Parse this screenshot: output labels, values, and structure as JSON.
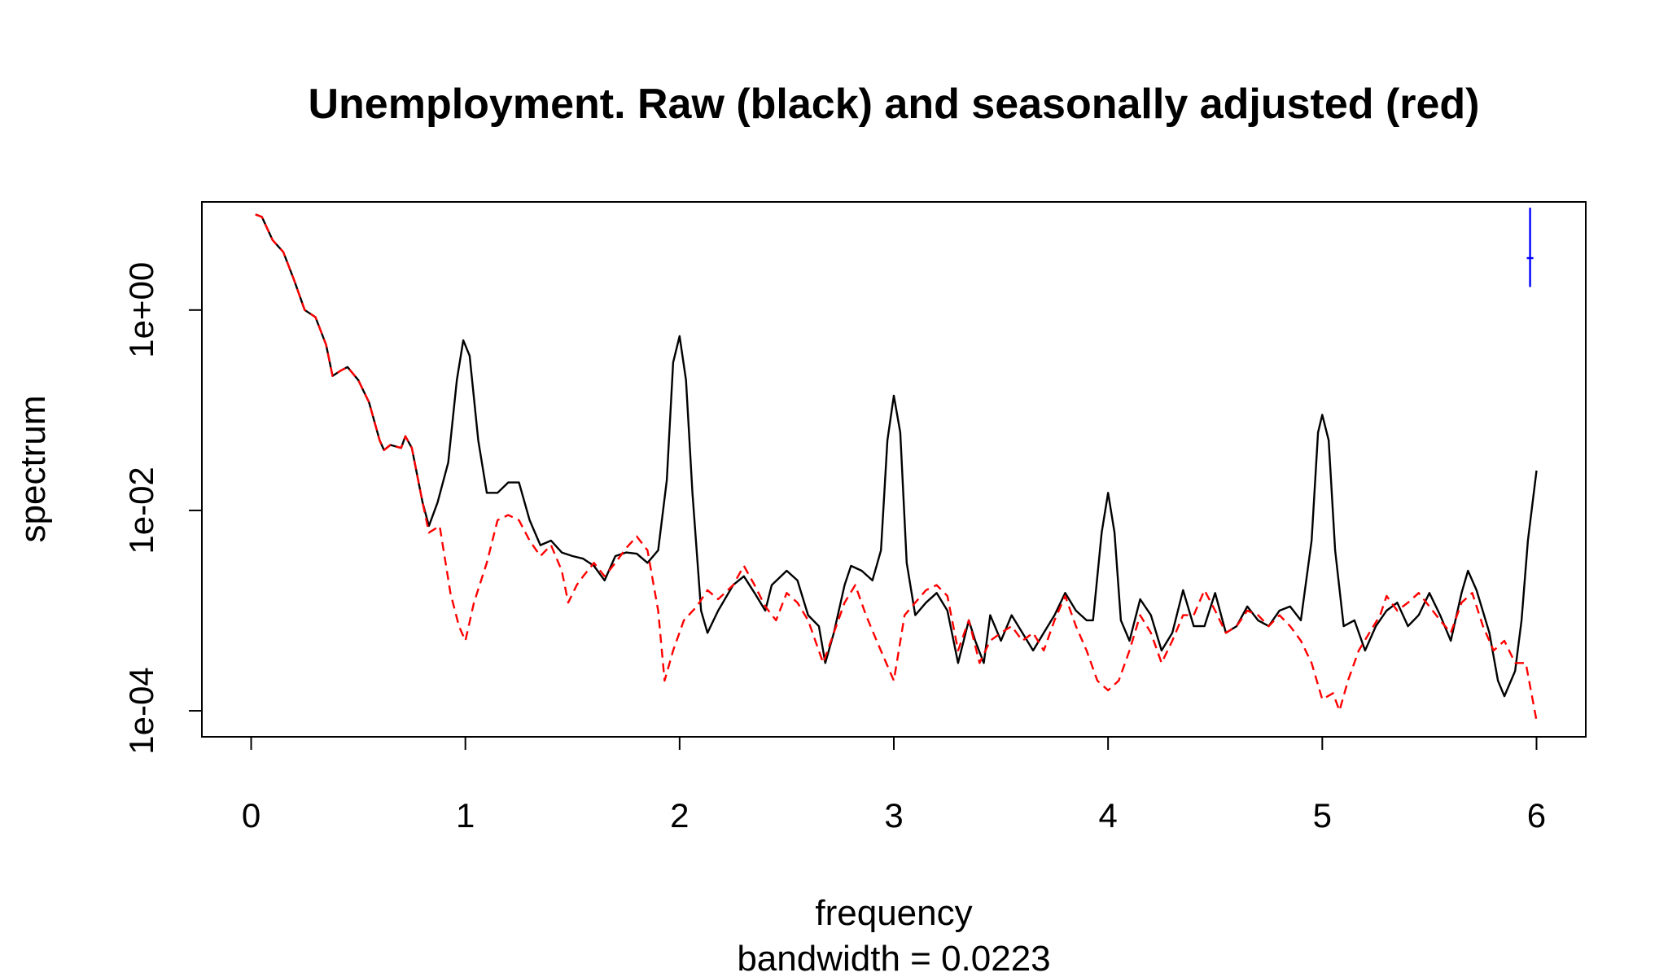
{
  "chart_data": {
    "type": "line",
    "title": "Unemployment. Raw (black) and seasonally adjusted (red)",
    "xlabel": "frequency",
    "ylabel": "spectrum",
    "subtitle": "bandwidth = 0.0223",
    "x_scale": "linear",
    "y_scale": "log",
    "xlim": [
      -0.23,
      6.23
    ],
    "ylim": [
      5.5e-05,
      12
    ],
    "x_ticks": [
      0,
      1,
      2,
      3,
      4,
      5,
      6
    ],
    "x_tick_labels": [
      "0",
      "1",
      "2",
      "3",
      "4",
      "5",
      "6"
    ],
    "y_ticks": [
      0.0001,
      0.01,
      1
    ],
    "y_tick_labels": [
      "1e-04",
      "1e-02",
      "1e+00"
    ],
    "grid": false,
    "legend": "none",
    "colors": {
      "raw": "#000000",
      "adjusted": "#ff0000",
      "ci_bar": "#0000ff"
    },
    "confidence_bar": {
      "x": 5.97,
      "y_low": 1.7,
      "y_center": 3.3,
      "y_high": 10.5
    },
    "series": [
      {
        "style": "solid",
        "color": "#000000",
        "points": [
          [
            0.02,
            9.0
          ],
          [
            0.05,
            8.5
          ],
          [
            0.1,
            5.0
          ],
          [
            0.15,
            3.8
          ],
          [
            0.2,
            2.0
          ],
          [
            0.25,
            1.0
          ],
          [
            0.3,
            0.85
          ],
          [
            0.35,
            0.45
          ],
          [
            0.38,
            0.22
          ],
          [
            0.42,
            0.25
          ],
          [
            0.45,
            0.27
          ],
          [
            0.5,
            0.2
          ],
          [
            0.55,
            0.12
          ],
          [
            0.6,
            0.05
          ],
          [
            0.62,
            0.04
          ],
          [
            0.65,
            0.045
          ],
          [
            0.7,
            0.042
          ],
          [
            0.72,
            0.055
          ],
          [
            0.75,
            0.042
          ],
          [
            0.8,
            0.012
          ],
          [
            0.83,
            0.007
          ],
          [
            0.87,
            0.012
          ],
          [
            0.92,
            0.03
          ],
          [
            0.96,
            0.2
          ],
          [
            0.99,
            0.5
          ],
          [
            1.02,
            0.35
          ],
          [
            1.06,
            0.05
          ],
          [
            1.1,
            0.015
          ],
          [
            1.15,
            0.015
          ],
          [
            1.2,
            0.019
          ],
          [
            1.25,
            0.019
          ],
          [
            1.3,
            0.008
          ],
          [
            1.35,
            0.0045
          ],
          [
            1.4,
            0.005
          ],
          [
            1.45,
            0.0038
          ],
          [
            1.5,
            0.0035
          ],
          [
            1.55,
            0.0033
          ],
          [
            1.6,
            0.0028
          ],
          [
            1.65,
            0.002
          ],
          [
            1.7,
            0.0035
          ],
          [
            1.75,
            0.0038
          ],
          [
            1.8,
            0.0037
          ],
          [
            1.85,
            0.003
          ],
          [
            1.9,
            0.004
          ],
          [
            1.94,
            0.02
          ],
          [
            1.97,
            0.3
          ],
          [
            2.0,
            0.55
          ],
          [
            2.03,
            0.2
          ],
          [
            2.06,
            0.015
          ],
          [
            2.1,
            0.001
          ],
          [
            2.13,
            0.0006
          ],
          [
            2.18,
            0.001
          ],
          [
            2.25,
            0.0018
          ],
          [
            2.3,
            0.0022
          ],
          [
            2.35,
            0.0015
          ],
          [
            2.4,
            0.001
          ],
          [
            2.43,
            0.0018
          ],
          [
            2.5,
            0.0025
          ],
          [
            2.55,
            0.002
          ],
          [
            2.6,
            0.0009
          ],
          [
            2.65,
            0.0007
          ],
          [
            2.68,
            0.0003
          ],
          [
            2.72,
            0.0006
          ],
          [
            2.77,
            0.0018
          ],
          [
            2.8,
            0.0028
          ],
          [
            2.85,
            0.0025
          ],
          [
            2.9,
            0.002
          ],
          [
            2.94,
            0.004
          ],
          [
            2.97,
            0.05
          ],
          [
            3.0,
            0.14
          ],
          [
            3.03,
            0.06
          ],
          [
            3.06,
            0.003
          ],
          [
            3.1,
            0.0009
          ],
          [
            3.15,
            0.0012
          ],
          [
            3.2,
            0.0015
          ],
          [
            3.25,
            0.001
          ],
          [
            3.3,
            0.0003
          ],
          [
            3.35,
            0.0008
          ],
          [
            3.38,
            0.0005
          ],
          [
            3.42,
            0.0003
          ],
          [
            3.45,
            0.0009
          ],
          [
            3.5,
            0.0005
          ],
          [
            3.55,
            0.0009
          ],
          [
            3.6,
            0.0006
          ],
          [
            3.65,
            0.0004
          ],
          [
            3.7,
            0.0006
          ],
          [
            3.75,
            0.0009
          ],
          [
            3.8,
            0.0015
          ],
          [
            3.85,
            0.001
          ],
          [
            3.9,
            0.0008
          ],
          [
            3.93,
            0.0008
          ],
          [
            3.97,
            0.006
          ],
          [
            4.0,
            0.015
          ],
          [
            4.03,
            0.006
          ],
          [
            4.06,
            0.0008
          ],
          [
            4.1,
            0.0005
          ],
          [
            4.15,
            0.0013
          ],
          [
            4.2,
            0.0009
          ],
          [
            4.25,
            0.0004
          ],
          [
            4.3,
            0.0006
          ],
          [
            4.35,
            0.0016
          ],
          [
            4.4,
            0.0007
          ],
          [
            4.45,
            0.0007
          ],
          [
            4.5,
            0.0015
          ],
          [
            4.55,
            0.0006
          ],
          [
            4.6,
            0.0007
          ],
          [
            4.65,
            0.0011
          ],
          [
            4.7,
            0.0008
          ],
          [
            4.75,
            0.0007
          ],
          [
            4.8,
            0.001
          ],
          [
            4.85,
            0.0011
          ],
          [
            4.9,
            0.0008
          ],
          [
            4.95,
            0.005
          ],
          [
            4.98,
            0.06
          ],
          [
            5.0,
            0.09
          ],
          [
            5.03,
            0.05
          ],
          [
            5.06,
            0.004
          ],
          [
            5.1,
            0.0007
          ],
          [
            5.15,
            0.0008
          ],
          [
            5.2,
            0.0004
          ],
          [
            5.25,
            0.0007
          ],
          [
            5.3,
            0.001
          ],
          [
            5.35,
            0.0012
          ],
          [
            5.4,
            0.0007
          ],
          [
            5.45,
            0.0009
          ],
          [
            5.5,
            0.0015
          ],
          [
            5.55,
            0.0009
          ],
          [
            5.6,
            0.0005
          ],
          [
            5.65,
            0.0015
          ],
          [
            5.68,
            0.0025
          ],
          [
            5.72,
            0.0016
          ],
          [
            5.78,
            0.0006
          ],
          [
            5.82,
            0.0002
          ],
          [
            5.85,
            0.00014
          ],
          [
            5.9,
            0.00025
          ],
          [
            5.93,
            0.0008
          ],
          [
            5.96,
            0.005
          ],
          [
            6.0,
            0.025
          ]
        ]
      },
      {
        "style": "dashed",
        "color": "#ff0000",
        "points": [
          [
            0.02,
            9.0
          ],
          [
            0.05,
            8.5
          ],
          [
            0.1,
            5.0
          ],
          [
            0.15,
            3.8
          ],
          [
            0.2,
            2.0
          ],
          [
            0.25,
            1.0
          ],
          [
            0.3,
            0.85
          ],
          [
            0.35,
            0.45
          ],
          [
            0.38,
            0.22
          ],
          [
            0.42,
            0.25
          ],
          [
            0.45,
            0.27
          ],
          [
            0.5,
            0.2
          ],
          [
            0.55,
            0.12
          ],
          [
            0.6,
            0.05
          ],
          [
            0.62,
            0.04
          ],
          [
            0.65,
            0.045
          ],
          [
            0.7,
            0.042
          ],
          [
            0.72,
            0.055
          ],
          [
            0.75,
            0.042
          ],
          [
            0.8,
            0.012
          ],
          [
            0.83,
            0.006
          ],
          [
            0.88,
            0.007
          ],
          [
            0.93,
            0.0015
          ],
          [
            0.97,
            0.0007
          ],
          [
            1.0,
            0.0005
          ],
          [
            1.04,
            0.0012
          ],
          [
            1.1,
            0.003
          ],
          [
            1.15,
            0.008
          ],
          [
            1.2,
            0.009
          ],
          [
            1.25,
            0.008
          ],
          [
            1.3,
            0.005
          ],
          [
            1.35,
            0.0035
          ],
          [
            1.4,
            0.0045
          ],
          [
            1.45,
            0.0025
          ],
          [
            1.48,
            0.0012
          ],
          [
            1.52,
            0.0018
          ],
          [
            1.55,
            0.0022
          ],
          [
            1.6,
            0.003
          ],
          [
            1.65,
            0.0022
          ],
          [
            1.7,
            0.003
          ],
          [
            1.75,
            0.0042
          ],
          [
            1.8,
            0.0055
          ],
          [
            1.85,
            0.004
          ],
          [
            1.9,
            0.001
          ],
          [
            1.93,
            0.0002
          ],
          [
            1.97,
            0.0004
          ],
          [
            2.02,
            0.0008
          ],
          [
            2.08,
            0.0011
          ],
          [
            2.13,
            0.0016
          ],
          [
            2.18,
            0.0013
          ],
          [
            2.25,
            0.0018
          ],
          [
            2.3,
            0.0028
          ],
          [
            2.35,
            0.0018
          ],
          [
            2.4,
            0.0011
          ],
          [
            2.45,
            0.0008
          ],
          [
            2.5,
            0.0015
          ],
          [
            2.55,
            0.0012
          ],
          [
            2.6,
            0.0008
          ],
          [
            2.67,
            0.0003
          ],
          [
            2.72,
            0.0006
          ],
          [
            2.77,
            0.0012
          ],
          [
            2.82,
            0.0018
          ],
          [
            2.87,
            0.0009
          ],
          [
            2.92,
            0.0005
          ],
          [
            3.0,
            0.0002
          ],
          [
            3.05,
            0.0009
          ],
          [
            3.1,
            0.0012
          ],
          [
            3.15,
            0.0016
          ],
          [
            3.2,
            0.0018
          ],
          [
            3.25,
            0.0014
          ],
          [
            3.3,
            0.0004
          ],
          [
            3.35,
            0.0008
          ],
          [
            3.4,
            0.0003
          ],
          [
            3.45,
            0.0005
          ],
          [
            3.5,
            0.0006
          ],
          [
            3.55,
            0.0007
          ],
          [
            3.6,
            0.0005
          ],
          [
            3.65,
            0.0006
          ],
          [
            3.7,
            0.0004
          ],
          [
            3.75,
            0.0008
          ],
          [
            3.8,
            0.0014
          ],
          [
            3.85,
            0.0007
          ],
          [
            3.9,
            0.0004
          ],
          [
            3.95,
            0.0002
          ],
          [
            4.0,
            0.00016
          ],
          [
            4.05,
            0.0002
          ],
          [
            4.1,
            0.0004
          ],
          [
            4.15,
            0.0009
          ],
          [
            4.2,
            0.0006
          ],
          [
            4.25,
            0.0003
          ],
          [
            4.3,
            0.0005
          ],
          [
            4.35,
            0.0009
          ],
          [
            4.4,
            0.0009
          ],
          [
            4.45,
            0.0016
          ],
          [
            4.5,
            0.001
          ],
          [
            4.55,
            0.0006
          ],
          [
            4.6,
            0.0007
          ],
          [
            4.65,
            0.001
          ],
          [
            4.7,
            0.0009
          ],
          [
            4.75,
            0.0007
          ],
          [
            4.8,
            0.0009
          ],
          [
            4.85,
            0.0007
          ],
          [
            4.9,
            0.0005
          ],
          [
            4.95,
            0.0003
          ],
          [
            5.0,
            0.00013
          ],
          [
            5.05,
            0.00015
          ],
          [
            5.08,
            0.0001
          ],
          [
            5.12,
            0.0002
          ],
          [
            5.17,
            0.0004
          ],
          [
            5.22,
            0.0006
          ],
          [
            5.27,
            0.0009
          ],
          [
            5.3,
            0.0014
          ],
          [
            5.35,
            0.001
          ],
          [
            5.4,
            0.0012
          ],
          [
            5.45,
            0.0015
          ],
          [
            5.5,
            0.0011
          ],
          [
            5.55,
            0.0008
          ],
          [
            5.6,
            0.0006
          ],
          [
            5.65,
            0.0012
          ],
          [
            5.7,
            0.0015
          ],
          [
            5.75,
            0.0007
          ],
          [
            5.8,
            0.0004
          ],
          [
            5.85,
            0.0005
          ],
          [
            5.9,
            0.0003
          ],
          [
            5.95,
            0.0003
          ],
          [
            6.0,
            8e-05
          ]
        ]
      }
    ]
  }
}
